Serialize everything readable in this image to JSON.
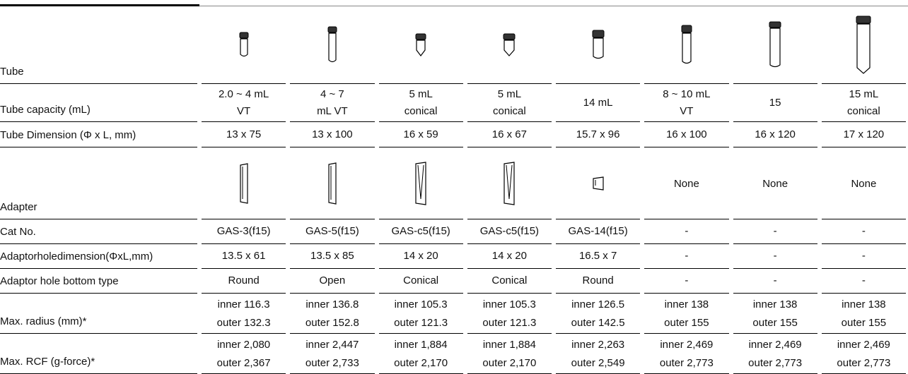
{
  "table": {
    "tube_label": "Tube",
    "adapter_label": "Adapter",
    "adapter_cells": [
      null,
      null,
      null,
      null,
      null,
      "None",
      "None",
      "None"
    ],
    "rows": [
      {
        "label": "Tube capacity (mL)",
        "cells": [
          [
            "2.0 ~ 4 mL",
            "VT"
          ],
          [
            "4 ~ 7",
            "mL VT"
          ],
          [
            "5 mL",
            "conical"
          ],
          [
            "5 mL",
            "conical"
          ],
          [
            "14 mL"
          ],
          [
            "8 ~ 10 mL",
            "VT"
          ],
          [
            "15"
          ],
          [
            "15 mL",
            "conical"
          ]
        ]
      },
      {
        "label": "Tube Dimension (Φ x L, mm)",
        "cells": [
          [
            "13 x 75"
          ],
          [
            "13 x 100"
          ],
          [
            "16 x 59"
          ],
          [
            "16 x 67"
          ],
          [
            "15.7 x 96"
          ],
          [
            "16 x 100"
          ],
          [
            "16 x 120"
          ],
          [
            "17 x 120"
          ]
        ]
      },
      {
        "label": "Cat No.",
        "cells": [
          [
            "GAS-3(f15)"
          ],
          [
            "GAS-5(f15)"
          ],
          [
            "GAS-c5(f15)"
          ],
          [
            "GAS-c5(f15)"
          ],
          [
            "GAS-14(f15)"
          ],
          [
            "-"
          ],
          [
            "-"
          ],
          [
            "-"
          ]
        ]
      },
      {
        "label": "Adaptorholedimension(ΦxL,mm)",
        "cells": [
          [
            "13.5 x 61"
          ],
          [
            "13.5 x 85"
          ],
          [
            "14 x 20"
          ],
          [
            "14 x 20"
          ],
          [
            "16.5 x 7"
          ],
          [
            "-"
          ],
          [
            "-"
          ],
          [
            "-"
          ]
        ]
      },
      {
        "label": "Adaptor hole bottom type",
        "cells": [
          [
            "Round"
          ],
          [
            "Open"
          ],
          [
            "Conical"
          ],
          [
            "Conical"
          ],
          [
            "Round"
          ],
          [
            "-"
          ],
          [
            "-"
          ],
          [
            "-"
          ]
        ]
      },
      {
        "label": "Max. radius (mm)*",
        "cells": [
          [
            "inner 116.3",
            "outer 132.3"
          ],
          [
            "inner 136.8",
            "outer 152.8"
          ],
          [
            "inner 105.3",
            "outer 121.3"
          ],
          [
            "inner 105.3",
            "outer 121.3"
          ],
          [
            "inner 126.5",
            "outer 142.5"
          ],
          [
            "inner 138",
            "outer 155"
          ],
          [
            "inner 138",
            "outer 155"
          ],
          [
            "inner 138",
            "outer 155"
          ]
        ]
      },
      {
        "label": "Max. RCF (g-force)*",
        "cells": [
          [
            "inner 2,080",
            "outer 2,367"
          ],
          [
            "inner  2,447",
            "outer 2,733"
          ],
          [
            "inner 1,884",
            "outer 2,170"
          ],
          [
            "inner 1,884",
            "outer 2,170"
          ],
          [
            "inner 2,263",
            "outer 2,549"
          ],
          [
            "inner 2,469",
            "outer 2,773"
          ],
          [
            "inner 2,469",
            "outer 2,773"
          ],
          [
            "inner 2,469",
            "outer 2,773"
          ]
        ]
      }
    ]
  }
}
